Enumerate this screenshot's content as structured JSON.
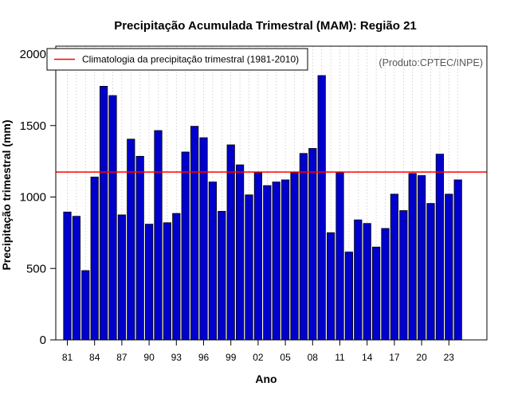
{
  "chart_data": {
    "type": "bar",
    "title": "Precipitação Acumulada Trimestral (MAM): Região 21",
    "xlabel": "Ano",
    "ylabel": "Precipitação trimestral (mm)",
    "ylim": [
      0,
      2000
    ],
    "yticks": [
      0,
      500,
      1000,
      1500,
      2000
    ],
    "ytick_labels": [
      "0",
      "500",
      "1000",
      "1500",
      "2000"
    ],
    "grid": "vertical-dotted",
    "credit": "(Produto:CPTEC/INPE)",
    "legend": {
      "position": "top-left",
      "entries": [
        {
          "label": "Climatologia da precipitação trimestral (1981-2010)",
          "color": "#ff0000"
        }
      ]
    },
    "climatology": 1175,
    "bar_color": "#0000cc",
    "categories": [
      "81",
      "82",
      "83",
      "84",
      "85",
      "86",
      "87",
      "88",
      "89",
      "90",
      "91",
      "92",
      "93",
      "94",
      "95",
      "96",
      "97",
      "98",
      "99",
      "00",
      "01",
      "02",
      "03",
      "04",
      "05",
      "06",
      "07",
      "08",
      "09",
      "10",
      "11",
      "12",
      "13",
      "14",
      "15",
      "16",
      "17",
      "18",
      "19",
      "20",
      "21",
      "22",
      "23",
      "24"
    ],
    "xtick_labels": [
      "81",
      "84",
      "87",
      "90",
      "93",
      "96",
      "99",
      "02",
      "05",
      "08",
      "11",
      "14",
      "17",
      "20",
      "23"
    ],
    "values": [
      895,
      865,
      485,
      1140,
      1775,
      1710,
      875,
      1405,
      1285,
      810,
      1465,
      820,
      885,
      1315,
      1495,
      1415,
      1105,
      900,
      1365,
      1225,
      1015,
      1170,
      1080,
      1105,
      1120,
      1170,
      1305,
      1340,
      1850,
      750,
      1170,
      615,
      840,
      815,
      650,
      780,
      1020,
      905,
      1165,
      1150,
      955,
      1300,
      1020,
      1120
    ]
  }
}
